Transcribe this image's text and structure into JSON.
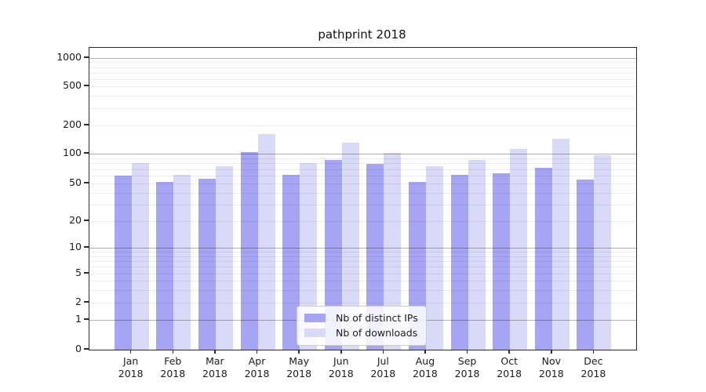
{
  "title": "pathprint 2018",
  "chart_data": {
    "type": "bar",
    "title": "pathprint 2018",
    "categories": [
      "Jan 2018",
      "Feb 2018",
      "Mar 2018",
      "Apr 2018",
      "May 2018",
      "Jun 2018",
      "Jul 2018",
      "Aug 2018",
      "Sep 2018",
      "Oct 2018",
      "Nov 2018",
      "Dec 2018"
    ],
    "series": [
      {
        "name": "Nb of distinct IPs",
        "color": "#a5a5f3",
        "values": [
          60,
          52,
          56,
          103,
          61,
          86,
          79,
          52,
          61,
          63,
          72,
          55
        ]
      },
      {
        "name": "Nb of downloads",
        "color": "#d9d9f8",
        "values": [
          80,
          61,
          75,
          163,
          80,
          130,
          101,
          75,
          87,
          112,
          145,
          96
        ]
      }
    ],
    "yscale": "symlog",
    "ylim": [
      0,
      1300
    ],
    "yticks": [
      0,
      1,
      2,
      5,
      10,
      20,
      50,
      100,
      200,
      500,
      1000
    ],
    "grid": true,
    "legend_position": "lower center",
    "background_color": "#ffffff",
    "major_grid_color": "#b3b3b3",
    "minor_grid_color": "#ececec"
  }
}
